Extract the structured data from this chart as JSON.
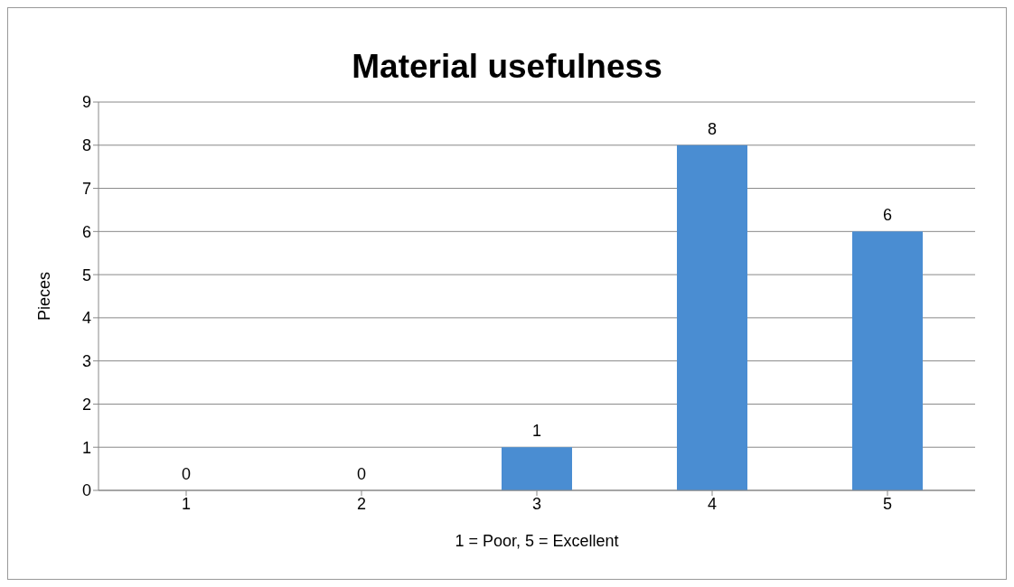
{
  "chart_data": {
    "type": "bar",
    "title": "Material usefulness",
    "xlabel": "1 = Poor, 5 = Excellent",
    "ylabel": "Pieces",
    "categories": [
      "1",
      "2",
      "3",
      "4",
      "5"
    ],
    "values": [
      0,
      0,
      1,
      8,
      6
    ],
    "color": "#4a8dd2",
    "ylim": [
      0,
      9
    ],
    "yticks": [
      0,
      1,
      2,
      3,
      4,
      5,
      6,
      7,
      8,
      9
    ],
    "grid": "y",
    "data_labels": true,
    "legend": false
  }
}
